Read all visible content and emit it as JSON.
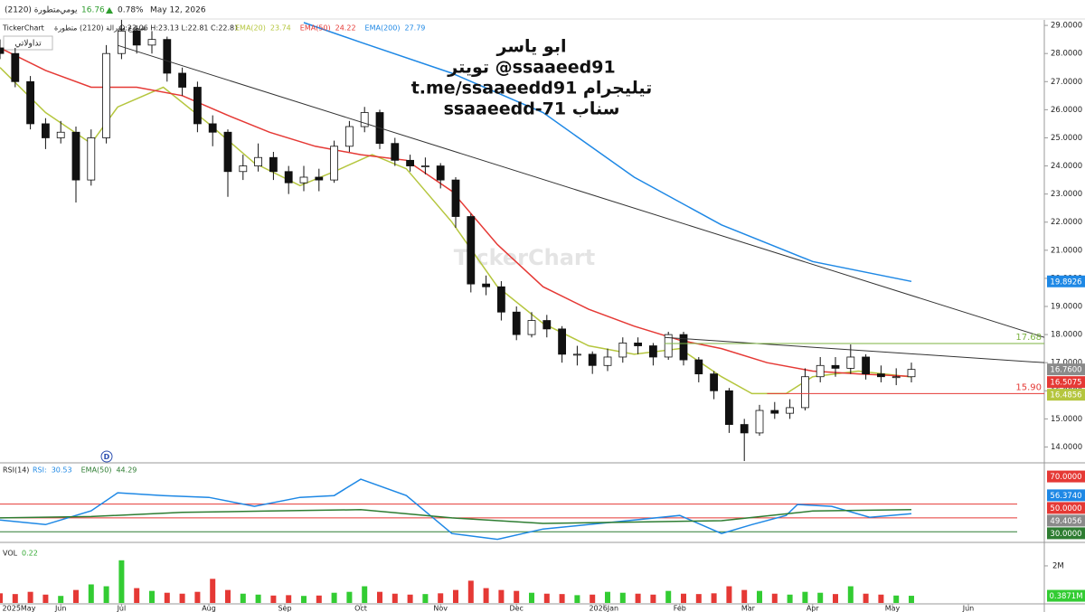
{
  "header": {
    "symbol": "متطورة (2120)",
    "period": "يومي",
    "last": 16.76,
    "change": "0.78%",
    "date": "May 12, 2026",
    "brand": "TickerChart",
    "chart_kind": "شموع مقرالة (2120) متطورة",
    "ohlc": "O:23.06 H:23.13 L:22.81 C:22.81",
    "button": "تداولاتي"
  },
  "chart_data": [
    {
      "type": "candlestick",
      "xlim": [
        0,
        275
      ],
      "ylim": [
        13.5,
        29.1
      ],
      "yticks": [
        {
          "value": 14,
          "label": "14.0000"
        },
        {
          "value": 15,
          "label": "15.0000"
        },
        {
          "value": 16,
          "label": "16.0000"
        },
        {
          "value": 17,
          "label": "17.0000"
        },
        {
          "value": 18,
          "label": "18.0000"
        },
        {
          "value": 19,
          "label": "19.0000"
        },
        {
          "value": 20,
          "label": "20.0000"
        },
        {
          "value": 21,
          "label": "21.0000"
        },
        {
          "value": 22,
          "label": "22.0000"
        },
        {
          "value": 23,
          "label": "23.0000"
        },
        {
          "value": 24,
          "label": "24.0000"
        },
        {
          "value": 25,
          "label": "25.0000"
        },
        {
          "value": 26,
          "label": "26.0000"
        },
        {
          "value": 27,
          "label": "27.0000"
        },
        {
          "value": 28,
          "label": "28.0000"
        },
        {
          "value": 29,
          "label": "29.0000"
        }
      ],
      "up_color": "#ffffff",
      "down_color": "#111111",
      "candles": {
        "x": [
          0,
          4,
          8,
          12,
          16,
          20,
          24,
          28,
          32,
          36,
          40,
          44,
          48,
          52,
          56,
          60,
          64,
          68,
          72,
          76,
          80,
          84,
          88,
          92,
          96,
          100,
          104,
          108,
          112,
          116,
          120,
          124,
          128,
          132,
          136,
          140,
          144,
          148,
          152,
          156,
          160,
          164,
          168,
          172,
          176,
          180,
          184,
          188,
          192,
          196,
          200,
          204,
          208,
          212,
          216,
          220,
          224,
          228,
          232,
          236,
          240
        ],
        "open": [
          28.2,
          28.0,
          27.0,
          25.5,
          25.0,
          25.2,
          23.5,
          25.0,
          28.0,
          28.8,
          28.3,
          28.5,
          27.3,
          26.8,
          25.5,
          25.2,
          23.8,
          24.0,
          24.3,
          23.8,
          23.4,
          23.6,
          23.5,
          24.7,
          25.4,
          25.9,
          24.8,
          24.2,
          24.0,
          24.0,
          23.5,
          22.2,
          19.8,
          19.7,
          18.8,
          18.0,
          18.5,
          18.2,
          17.3,
          17.3,
          16.9,
          17.2,
          17.7,
          17.6,
          17.2,
          18.0,
          17.1,
          16.6,
          16.0,
          14.8,
          14.5,
          15.3,
          15.2,
          15.4,
          16.5,
          16.9,
          16.8,
          17.2,
          16.6,
          16.5,
          16.5
        ],
        "high": [
          28.5,
          28.2,
          27.2,
          25.7,
          25.6,
          25.4,
          25.3,
          28.3,
          29.2,
          29.0,
          28.8,
          28.6,
          27.5,
          27.0,
          25.8,
          25.3,
          24.4,
          24.8,
          24.5,
          24.0,
          24.0,
          23.9,
          24.9,
          25.6,
          26.1,
          26.0,
          25.0,
          24.4,
          24.3,
          24.1,
          23.6,
          22.3,
          20.1,
          19.9,
          19.0,
          18.8,
          18.7,
          18.3,
          17.6,
          17.4,
          17.5,
          17.9,
          17.9,
          17.7,
          18.1,
          18.1,
          17.2,
          16.7,
          16.1,
          15.0,
          15.5,
          15.6,
          15.7,
          16.8,
          17.2,
          17.2,
          17.65,
          17.3,
          16.9,
          16.8,
          17.0
        ],
        "low": [
          27.8,
          26.8,
          25.3,
          24.6,
          24.8,
          22.7,
          23.3,
          24.8,
          27.8,
          28.0,
          28.0,
          27.0,
          26.5,
          25.2,
          24.7,
          22.9,
          23.5,
          23.8,
          23.5,
          23.0,
          23.1,
          23.1,
          23.4,
          24.5,
          25.2,
          24.6,
          24.0,
          23.8,
          23.7,
          23.2,
          21.8,
          19.5,
          19.4,
          18.5,
          17.8,
          17.9,
          17.9,
          17.0,
          16.9,
          16.6,
          16.7,
          17.0,
          17.3,
          16.9,
          17.1,
          16.9,
          16.3,
          15.7,
          14.5,
          13.5,
          14.4,
          15.0,
          15.0,
          15.3,
          16.3,
          16.5,
          16.6,
          16.4,
          16.3,
          16.2,
          16.3
        ],
        "close": [
          28.0,
          27.0,
          25.5,
          25.0,
          25.2,
          23.5,
          25.0,
          28.0,
          28.8,
          28.3,
          28.5,
          27.3,
          26.8,
          25.5,
          25.2,
          23.8,
          24.0,
          24.3,
          23.8,
          23.4,
          23.6,
          23.5,
          24.7,
          25.4,
          25.9,
          24.8,
          24.2,
          24.0,
          24.0,
          23.5,
          22.2,
          19.8,
          19.7,
          18.8,
          18.0,
          18.5,
          18.2,
          17.3,
          17.3,
          16.9,
          17.2,
          17.7,
          17.6,
          17.2,
          18.0,
          17.1,
          16.6,
          16.0,
          14.8,
          14.5,
          15.3,
          15.2,
          15.4,
          16.5,
          16.9,
          16.8,
          17.2,
          16.6,
          16.5,
          16.5,
          16.76
        ]
      },
      "series": [
        {
          "name": "EMA(20)",
          "legend_value": 23.74,
          "color": "#b5c63e",
          "x": [
            0,
            12,
            24,
            31,
            43,
            55,
            67,
            79,
            88,
            98,
            107,
            119,
            131,
            143,
            155,
            167,
            179,
            190,
            198,
            207,
            214,
            226,
            240
          ],
          "values": [
            27.5,
            25.9,
            24.8,
            26.1,
            26.8,
            25.5,
            24.1,
            23.3,
            23.8,
            24.4,
            23.9,
            22.0,
            19.7,
            18.4,
            17.6,
            17.3,
            17.5,
            16.5,
            15.9,
            15.9,
            16.5,
            16.7,
            16.49
          ]
        },
        {
          "name": "EMA(50)",
          "legend_value": 24.22,
          "color": "#e53935",
          "x": [
            0,
            12,
            24,
            36,
            48,
            60,
            71,
            83,
            95,
            107,
            119,
            131,
            143,
            155,
            167,
            179,
            190,
            202,
            214,
            226,
            240
          ],
          "values": [
            28.2,
            27.4,
            26.8,
            26.8,
            26.5,
            25.8,
            25.2,
            24.7,
            24.4,
            24.2,
            23.1,
            21.2,
            19.7,
            18.9,
            18.3,
            17.8,
            17.5,
            17.0,
            16.7,
            16.6,
            16.51
          ]
        },
        {
          "name": "EMA(200)",
          "legend_value": 27.79,
          "color": "#1e88e5",
          "x": [
            80,
            95,
            119,
            143,
            167,
            190,
            214,
            240
          ],
          "values": [
            29.1,
            28.4,
            27.3,
            25.9,
            23.6,
            21.9,
            20.6,
            19.89
          ]
        }
      ],
      "trendlines": [
        {
          "x": [
            31,
            275
          ],
          "y": [
            28.29,
            17.9
          ]
        },
        {
          "x": [
            175,
            275
          ],
          "y": [
            17.9,
            17.0
          ]
        }
      ],
      "levels": [
        {
          "x": 175,
          "value": 17.68,
          "color": "#7cb342"
        },
        {
          "x": 202,
          "value": 15.9,
          "label": "15.90",
          "color": "#e53935"
        }
      ],
      "price_tags": [
        {
          "value": 19.8926,
          "color": "#1e88e5"
        },
        {
          "value": 16.76,
          "label": "16.7600",
          "color": "#8a8a8a"
        },
        {
          "value": 16.5075,
          "color": "#e53935"
        },
        {
          "value": 16.4856,
          "color": "#b5c63e"
        }
      ],
      "overlay": [
        "ابو ياسر",
        "تويتر  @ssaaeed91",
        "t.me/ssaaeedd91 تيليجرام",
        "ssaaeedd-71  سناب"
      ],
      "watermark": "TickerChart",
      "marker": "D"
    },
    {
      "type": "line",
      "title": "RSI(14)",
      "ylim": [
        23.6,
        77.9
      ],
      "series": [
        {
          "name": "RSI:",
          "legend_value": 30.53,
          "color": "#1e88e5",
          "x": [
            0,
            12,
            24,
            31,
            43,
            55,
            67,
            79,
            88,
            95,
            107,
            119,
            131,
            143,
            155,
            167,
            179,
            190,
            198,
            207,
            210,
            219,
            229,
            240
          ],
          "values": [
            38.5,
            35.2,
            45.1,
            58.2,
            56.2,
            54.9,
            48.4,
            54.9,
            56.2,
            68,
            56.2,
            28.7,
            24.5,
            32,
            35.2,
            38.5,
            41.8,
            28.7,
            35.2,
            41.8,
            49.7,
            48.4,
            40.5,
            43.1
          ]
        },
        {
          "name": "EMA(50)",
          "legend_value": 44.29,
          "color": "#2e7d32",
          "x": [
            0,
            24,
            48,
            71,
            95,
            119,
            143,
            167,
            190,
            214,
            240
          ],
          "values": [
            40,
            41,
            44,
            45,
            46,
            40,
            36,
            37,
            38,
            45,
            46
          ]
        }
      ],
      "levels": [
        {
          "value": 50,
          "color": "#e53935"
        },
        {
          "value": 40,
          "color": "#e53935"
        },
        {
          "value": 30,
          "color": "#2e7d32"
        }
      ],
      "price_tags": [
        {
          "value": 70,
          "label": "70.0000",
          "color": "#e53935"
        },
        {
          "value": 56.374,
          "label": "56.3740",
          "color": "#1e88e5"
        },
        {
          "value": 50,
          "label": "50.0000",
          "color": "#e53935"
        },
        {
          "value": 49.4056,
          "color": "#8a8a8a"
        },
        {
          "value": 30,
          "label": "30.0000",
          "color": "#2e7d32"
        }
      ]
    },
    {
      "type": "bar",
      "title": "VOL",
      "legend_value": 0.22,
      "ylim": [
        0,
        3070000
      ],
      "yticks": [
        {
          "value": 2000000,
          "label": "2M"
        }
      ],
      "up_color": "#33cc33",
      "down_color": "#e53935",
      "x": [
        0,
        4,
        8,
        12,
        16,
        20,
        24,
        28,
        32,
        36,
        40,
        44,
        48,
        52,
        56,
        60,
        64,
        68,
        72,
        76,
        80,
        84,
        88,
        92,
        96,
        100,
        104,
        108,
        112,
        116,
        120,
        124,
        128,
        132,
        136,
        140,
        144,
        148,
        152,
        156,
        160,
        164,
        168,
        172,
        176,
        180,
        184,
        188,
        192,
        196,
        200,
        204,
        208,
        212,
        216,
        220,
        224,
        228,
        232,
        236,
        240
      ],
      "values": [
        520000,
        480000,
        600000,
        450000,
        380000,
        700000,
        1000000,
        900000,
        2300000,
        800000,
        650000,
        550000,
        500000,
        600000,
        1300000,
        700000,
        500000,
        450000,
        400000,
        420000,
        380000,
        400000,
        550000,
        600000,
        900000,
        600000,
        500000,
        450000,
        480000,
        520000,
        700000,
        1200000,
        800000,
        700000,
        650000,
        550000,
        500000,
        480000,
        420000,
        450000,
        600000,
        550000,
        500000,
        450000,
        650000,
        500000,
        480000,
        520000,
        900000,
        700000,
        650000,
        500000,
        450000,
        600000,
        550000,
        480000,
        900000,
        500000,
        450000,
        400000,
        387100
      ],
      "price_tags": [
        {
          "value": 387100,
          "label": "0.3871M",
          "color": "#33cc33"
        }
      ],
      "xticks": [
        {
          "value": 5,
          "label": "2025May"
        },
        {
          "value": 16,
          "label": "Jun"
        },
        {
          "value": 32,
          "label": "Jul"
        },
        {
          "value": 55,
          "label": "Aug"
        },
        {
          "value": 75,
          "label": "Sep"
        },
        {
          "value": 95,
          "label": "Oct"
        },
        {
          "value": 116,
          "label": "Nov"
        },
        {
          "value": 136,
          "label": "Dec"
        },
        {
          "value": 159,
          "label": "2026Jan"
        },
        {
          "value": 179,
          "label": "Feb"
        },
        {
          "value": 197,
          "label": "Mar"
        },
        {
          "value": 214,
          "label": "Apr"
        },
        {
          "value": 235,
          "label": "May"
        },
        {
          "value": 255,
          "label": "Jun"
        }
      ]
    }
  ]
}
